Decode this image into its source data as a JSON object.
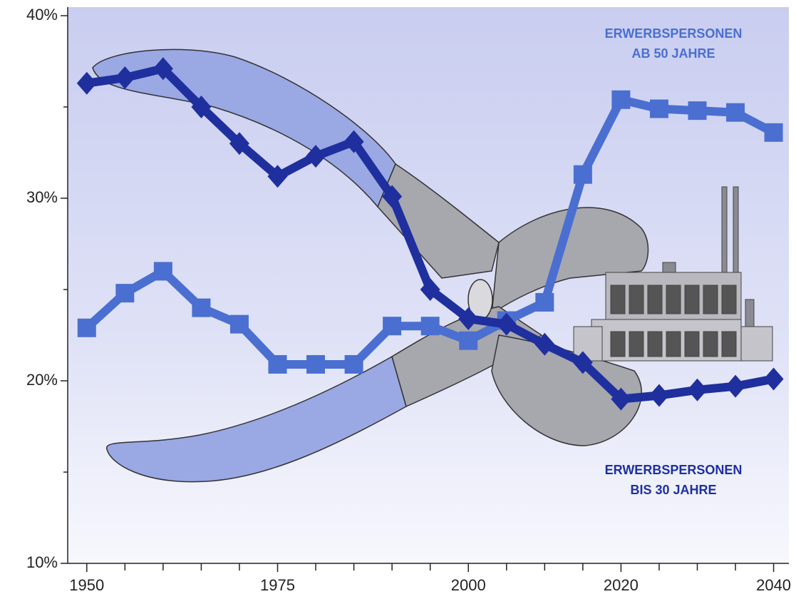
{
  "chart_data": {
    "type": "line",
    "x": [
      1950,
      1955,
      1960,
      1965,
      1970,
      1975,
      1980,
      1985,
      1990,
      1995,
      2000,
      2005,
      2010,
      2015,
      2020,
      2025,
      2030,
      2035,
      2040
    ],
    "series": [
      {
        "name": "ERWERBSPERSONEN BIS 30 JAHRE",
        "color": "#1f2f9e",
        "marker": "diamond",
        "values": [
          36.3,
          36.6,
          37.1,
          35.0,
          33.0,
          31.2,
          32.3,
          33.1,
          30.1,
          25.0,
          23.4,
          23.1,
          22.0,
          21.0,
          19.0,
          19.2,
          19.5,
          19.7,
          20.1
        ]
      },
      {
        "name": "ERWERBSPERSONEN AB 50 JAHRE",
        "color": "#4a6fd0",
        "marker": "square",
        "values": [
          22.9,
          24.8,
          26.0,
          24.0,
          23.1,
          20.9,
          20.9,
          20.9,
          23.0,
          23.0,
          22.2,
          23.3,
          24.3,
          31.3,
          35.4,
          34.9,
          34.8,
          34.7,
          33.6
        ]
      }
    ],
    "xlim": [
      1947.5,
      2042
    ],
    "xticks": [
      1950,
      1975,
      2000,
      2020,
      2040
    ],
    "xminorticks": [
      1955,
      1960,
      1965,
      1970,
      1980,
      1985,
      1990,
      1995,
      2005,
      2010,
      2015,
      2025,
      2030,
      2035
    ],
    "ylim": [
      10,
      40
    ],
    "yticks": [
      {
        "value": 10,
        "label": "10%"
      },
      {
        "value": 20,
        "label": "20%"
      },
      {
        "value": 30,
        "label": "30%"
      },
      {
        "value": 40,
        "label": "40%"
      }
    ],
    "yminorticks": [
      15,
      25,
      35
    ]
  }
}
